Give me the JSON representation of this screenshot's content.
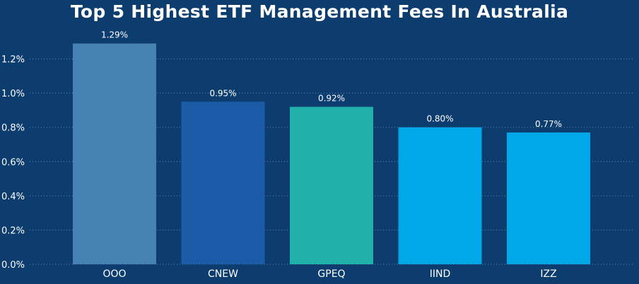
{
  "chart_data": {
    "type": "bar",
    "title": "Top 5 Highest ETF Management Fees In Australia",
    "xlabel": "",
    "ylabel": "",
    "categories": [
      "OOO",
      "CNEW",
      "GPEQ",
      "IIND",
      "IZZ"
    ],
    "values": [
      1.29,
      0.95,
      0.92,
      0.8,
      0.77
    ],
    "data_labels": [
      "1.29%",
      "0.95%",
      "0.92%",
      "0.80%",
      "0.77%"
    ],
    "bar_colors": [
      "#4682b4",
      "#1b5ca8",
      "#20b2aa",
      "#00a8e8",
      "#00a8e8"
    ],
    "ylim": [
      0,
      1.4
    ],
    "yticks": [
      0,
      0.2,
      0.4,
      0.6,
      0.8,
      1.0,
      1.2
    ],
    "ytick_labels": [
      "0.0%",
      "0.2%",
      "0.4%",
      "0.6%",
      "0.8%",
      "1.0%",
      "1.2%"
    ],
    "grid": true,
    "background": "#0c3d6e",
    "text_color": "#ffffff"
  }
}
